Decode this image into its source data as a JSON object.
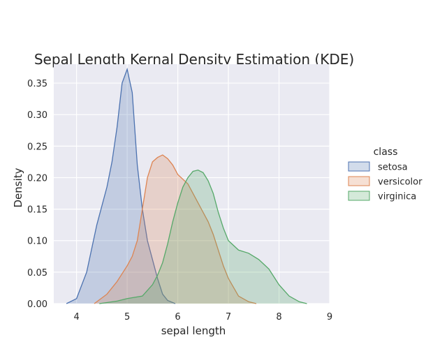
{
  "chart_data": {
    "type": "area",
    "title": "Sepal Length Kernal Density Estimation (KDE)",
    "xlabel": "sepal length",
    "ylabel": "Density",
    "xlim": [
      3.55,
      9.0
    ],
    "ylim": [
      0,
      0.38
    ],
    "xticks": [
      4,
      5,
      6,
      7,
      8,
      9
    ],
    "yticks": [
      0.0,
      0.05,
      0.1,
      0.15,
      0.2,
      0.25,
      0.3,
      0.35
    ],
    "ytick_labels": [
      "0.00",
      "0.05",
      "0.10",
      "0.15",
      "0.20",
      "0.25",
      "0.30",
      "0.35"
    ],
    "grid": true,
    "legend": {
      "title": "class",
      "placement": "right"
    },
    "series": [
      {
        "name": "setosa",
        "color": "#4c72b0",
        "x": [
          3.8,
          4.0,
          4.2,
          4.4,
          4.6,
          4.7,
          4.8,
          4.9,
          5.0,
          5.1,
          5.2,
          5.3,
          5.4,
          5.5,
          5.6,
          5.7,
          5.8,
          5.95
        ],
        "values": [
          0.0,
          0.008,
          0.05,
          0.125,
          0.185,
          0.225,
          0.28,
          0.35,
          0.372,
          0.335,
          0.22,
          0.15,
          0.1,
          0.07,
          0.04,
          0.015,
          0.005,
          0.0
        ]
      },
      {
        "name": "versicolor",
        "color": "#dd8452",
        "x": [
          4.35,
          4.6,
          4.8,
          5.0,
          5.1,
          5.2,
          5.3,
          5.4,
          5.5,
          5.6,
          5.7,
          5.8,
          5.9,
          6.0,
          6.2,
          6.4,
          6.5,
          6.6,
          6.7,
          6.8,
          6.9,
          7.0,
          7.2,
          7.4,
          7.55
        ],
        "values": [
          0.0,
          0.015,
          0.035,
          0.06,
          0.075,
          0.1,
          0.15,
          0.2,
          0.225,
          0.232,
          0.236,
          0.23,
          0.22,
          0.205,
          0.19,
          0.16,
          0.145,
          0.13,
          0.11,
          0.085,
          0.06,
          0.04,
          0.012,
          0.003,
          0.0
        ]
      },
      {
        "name": "virginica",
        "color": "#55a868",
        "x": [
          4.45,
          4.8,
          5.0,
          5.3,
          5.5,
          5.6,
          5.7,
          5.8,
          5.9,
          6.0,
          6.1,
          6.2,
          6.3,
          6.4,
          6.5,
          6.6,
          6.7,
          6.8,
          6.9,
          7.0,
          7.2,
          7.4,
          7.6,
          7.8,
          8.0,
          8.2,
          8.4,
          8.55
        ],
        "values": [
          0.0,
          0.004,
          0.008,
          0.012,
          0.03,
          0.045,
          0.065,
          0.095,
          0.13,
          0.16,
          0.185,
          0.2,
          0.21,
          0.212,
          0.208,
          0.195,
          0.175,
          0.145,
          0.12,
          0.1,
          0.085,
          0.08,
          0.07,
          0.055,
          0.03,
          0.012,
          0.003,
          0.0
        ]
      }
    ]
  }
}
